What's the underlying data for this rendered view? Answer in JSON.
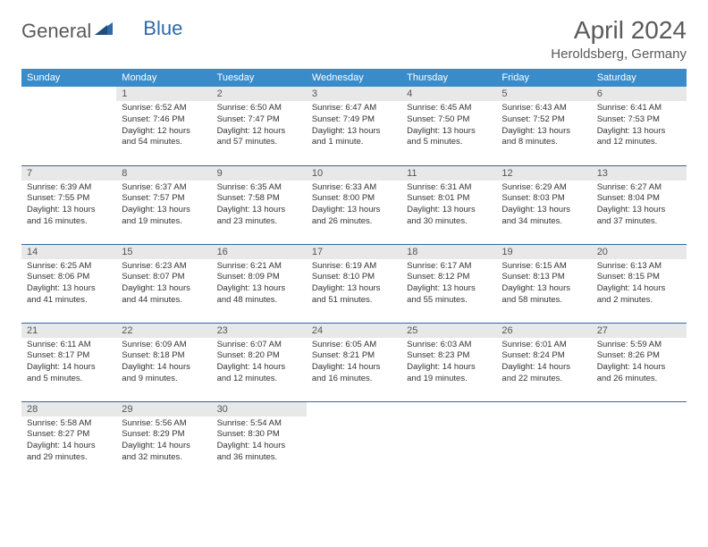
{
  "logo": {
    "text1": "General",
    "text2": "Blue"
  },
  "title": {
    "month": "April 2024",
    "location": "Heroldsberg, Germany"
  },
  "colors": {
    "header_bg": "#3a8bc9",
    "border": "#2d6aa8",
    "daynum_bg": "#e8e8e8",
    "text": "#333333",
    "logo_gray": "#5a5a5a",
    "logo_blue": "#2d6aa8"
  },
  "days_of_week": [
    "Sunday",
    "Monday",
    "Tuesday",
    "Wednesday",
    "Thursday",
    "Friday",
    "Saturday"
  ],
  "weeks": [
    [
      null,
      {
        "n": "1",
        "sr": "Sunrise: 6:52 AM",
        "ss": "Sunset: 7:46 PM",
        "dl": "Daylight: 12 hours and 54 minutes."
      },
      {
        "n": "2",
        "sr": "Sunrise: 6:50 AM",
        "ss": "Sunset: 7:47 PM",
        "dl": "Daylight: 12 hours and 57 minutes."
      },
      {
        "n": "3",
        "sr": "Sunrise: 6:47 AM",
        "ss": "Sunset: 7:49 PM",
        "dl": "Daylight: 13 hours and 1 minute."
      },
      {
        "n": "4",
        "sr": "Sunrise: 6:45 AM",
        "ss": "Sunset: 7:50 PM",
        "dl": "Daylight: 13 hours and 5 minutes."
      },
      {
        "n": "5",
        "sr": "Sunrise: 6:43 AM",
        "ss": "Sunset: 7:52 PM",
        "dl": "Daylight: 13 hours and 8 minutes."
      },
      {
        "n": "6",
        "sr": "Sunrise: 6:41 AM",
        "ss": "Sunset: 7:53 PM",
        "dl": "Daylight: 13 hours and 12 minutes."
      }
    ],
    [
      {
        "n": "7",
        "sr": "Sunrise: 6:39 AM",
        "ss": "Sunset: 7:55 PM",
        "dl": "Daylight: 13 hours and 16 minutes."
      },
      {
        "n": "8",
        "sr": "Sunrise: 6:37 AM",
        "ss": "Sunset: 7:57 PM",
        "dl": "Daylight: 13 hours and 19 minutes."
      },
      {
        "n": "9",
        "sr": "Sunrise: 6:35 AM",
        "ss": "Sunset: 7:58 PM",
        "dl": "Daylight: 13 hours and 23 minutes."
      },
      {
        "n": "10",
        "sr": "Sunrise: 6:33 AM",
        "ss": "Sunset: 8:00 PM",
        "dl": "Daylight: 13 hours and 26 minutes."
      },
      {
        "n": "11",
        "sr": "Sunrise: 6:31 AM",
        "ss": "Sunset: 8:01 PM",
        "dl": "Daylight: 13 hours and 30 minutes."
      },
      {
        "n": "12",
        "sr": "Sunrise: 6:29 AM",
        "ss": "Sunset: 8:03 PM",
        "dl": "Daylight: 13 hours and 34 minutes."
      },
      {
        "n": "13",
        "sr": "Sunrise: 6:27 AM",
        "ss": "Sunset: 8:04 PM",
        "dl": "Daylight: 13 hours and 37 minutes."
      }
    ],
    [
      {
        "n": "14",
        "sr": "Sunrise: 6:25 AM",
        "ss": "Sunset: 8:06 PM",
        "dl": "Daylight: 13 hours and 41 minutes."
      },
      {
        "n": "15",
        "sr": "Sunrise: 6:23 AM",
        "ss": "Sunset: 8:07 PM",
        "dl": "Daylight: 13 hours and 44 minutes."
      },
      {
        "n": "16",
        "sr": "Sunrise: 6:21 AM",
        "ss": "Sunset: 8:09 PM",
        "dl": "Daylight: 13 hours and 48 minutes."
      },
      {
        "n": "17",
        "sr": "Sunrise: 6:19 AM",
        "ss": "Sunset: 8:10 PM",
        "dl": "Daylight: 13 hours and 51 minutes."
      },
      {
        "n": "18",
        "sr": "Sunrise: 6:17 AM",
        "ss": "Sunset: 8:12 PM",
        "dl": "Daylight: 13 hours and 55 minutes."
      },
      {
        "n": "19",
        "sr": "Sunrise: 6:15 AM",
        "ss": "Sunset: 8:13 PM",
        "dl": "Daylight: 13 hours and 58 minutes."
      },
      {
        "n": "20",
        "sr": "Sunrise: 6:13 AM",
        "ss": "Sunset: 8:15 PM",
        "dl": "Daylight: 14 hours and 2 minutes."
      }
    ],
    [
      {
        "n": "21",
        "sr": "Sunrise: 6:11 AM",
        "ss": "Sunset: 8:17 PM",
        "dl": "Daylight: 14 hours and 5 minutes."
      },
      {
        "n": "22",
        "sr": "Sunrise: 6:09 AM",
        "ss": "Sunset: 8:18 PM",
        "dl": "Daylight: 14 hours and 9 minutes."
      },
      {
        "n": "23",
        "sr": "Sunrise: 6:07 AM",
        "ss": "Sunset: 8:20 PM",
        "dl": "Daylight: 14 hours and 12 minutes."
      },
      {
        "n": "24",
        "sr": "Sunrise: 6:05 AM",
        "ss": "Sunset: 8:21 PM",
        "dl": "Daylight: 14 hours and 16 minutes."
      },
      {
        "n": "25",
        "sr": "Sunrise: 6:03 AM",
        "ss": "Sunset: 8:23 PM",
        "dl": "Daylight: 14 hours and 19 minutes."
      },
      {
        "n": "26",
        "sr": "Sunrise: 6:01 AM",
        "ss": "Sunset: 8:24 PM",
        "dl": "Daylight: 14 hours and 22 minutes."
      },
      {
        "n": "27",
        "sr": "Sunrise: 5:59 AM",
        "ss": "Sunset: 8:26 PM",
        "dl": "Daylight: 14 hours and 26 minutes."
      }
    ],
    [
      {
        "n": "28",
        "sr": "Sunrise: 5:58 AM",
        "ss": "Sunset: 8:27 PM",
        "dl": "Daylight: 14 hours and 29 minutes."
      },
      {
        "n": "29",
        "sr": "Sunrise: 5:56 AM",
        "ss": "Sunset: 8:29 PM",
        "dl": "Daylight: 14 hours and 32 minutes."
      },
      {
        "n": "30",
        "sr": "Sunrise: 5:54 AM",
        "ss": "Sunset: 8:30 PM",
        "dl": "Daylight: 14 hours and 36 minutes."
      },
      null,
      null,
      null,
      null
    ]
  ]
}
